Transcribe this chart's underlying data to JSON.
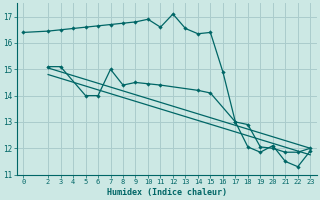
{
  "xlabel": "Humidex (Indice chaleur)",
  "bg_color": "#cce8e4",
  "grid_color": "#aacccc",
  "line_color": "#006666",
  "xlim": [
    -0.5,
    23.5
  ],
  "ylim": [
    11,
    17.5
  ],
  "yticks": [
    11,
    12,
    13,
    14,
    15,
    16,
    17
  ],
  "xticks": [
    0,
    2,
    3,
    4,
    5,
    6,
    7,
    8,
    9,
    10,
    11,
    12,
    13,
    14,
    15,
    16,
    17,
    18,
    19,
    20,
    21,
    22,
    23
  ],
  "line1_x": [
    0,
    2,
    3,
    4,
    5,
    6,
    7,
    8,
    9,
    10,
    11,
    12,
    13,
    14,
    15,
    16,
    17,
    18,
    19,
    20,
    21,
    22,
    23
  ],
  "line1_y": [
    16.4,
    16.45,
    16.5,
    16.55,
    16.6,
    16.65,
    16.7,
    16.75,
    16.8,
    16.9,
    16.6,
    17.1,
    16.55,
    16.35,
    16.4,
    14.9,
    13.0,
    12.05,
    11.85,
    12.1,
    11.5,
    11.3,
    11.9
  ],
  "line2_x": [
    2,
    3,
    5,
    6,
    7,
    8,
    9,
    10,
    11,
    14,
    15,
    17,
    18,
    19,
    20,
    21,
    22,
    23
  ],
  "line2_y": [
    15.1,
    15.1,
    14.0,
    14.0,
    15.0,
    14.4,
    14.5,
    14.45,
    14.4,
    14.2,
    14.1,
    13.0,
    12.9,
    12.05,
    12.0,
    11.85,
    11.85,
    12.0
  ],
  "line3_x": [
    2,
    23
  ],
  "line3_y": [
    15.05,
    12.0
  ],
  "line4_x": [
    2,
    23
  ],
  "line4_y": [
    14.8,
    11.75
  ]
}
